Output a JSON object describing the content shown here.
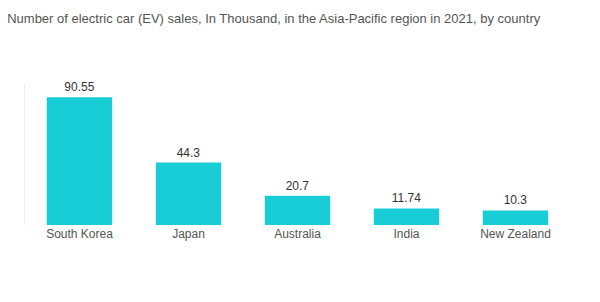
{
  "chart_data": {
    "type": "bar",
    "title": "Number of electric car (EV) sales, In Thousand, in the Asia-Pacific region in 2021, by country",
    "categories": [
      "South Korea",
      "Japan",
      "Australia",
      "India",
      "New Zealand"
    ],
    "values": [
      90.55,
      44.3,
      20.7,
      11.74,
      10.3
    ],
    "color": "#19cdd7",
    "ylim": [
      0,
      100
    ],
    "grid": false,
    "data_labels": true,
    "tick_labels": "x"
  }
}
